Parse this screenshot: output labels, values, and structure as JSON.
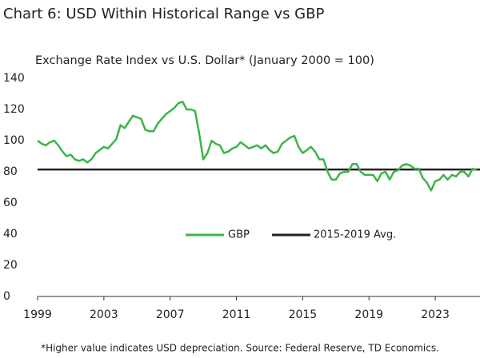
{
  "chart_data": {
    "type": "line",
    "title": "Chart 6: USD Within Historical Range vs GBP",
    "subtitle": "Exchange Rate Index vs U.S. Dollar* (January 2000 = 100)",
    "footnote": "*Higher value indicates USD depreciation. Source: Federal Reserve, TD Economics.",
    "x": [
      1999.0,
      1999.25,
      1999.5,
      1999.75,
      2000.0,
      2000.25,
      2000.5,
      2000.75,
      2001.0,
      2001.25,
      2001.5,
      2001.75,
      2002.0,
      2002.25,
      2002.5,
      2002.75,
      2003.0,
      2003.25,
      2003.5,
      2003.75,
      2004.0,
      2004.25,
      2004.5,
      2004.75,
      2005.0,
      2005.25,
      2005.5,
      2005.75,
      2006.0,
      2006.25,
      2006.5,
      2006.75,
      2007.0,
      2007.25,
      2007.5,
      2007.75,
      2008.0,
      2008.25,
      2008.5,
      2008.75,
      2009.0,
      2009.25,
      2009.5,
      2009.75,
      2010.0,
      2010.25,
      2010.5,
      2010.75,
      2011.0,
      2011.25,
      2011.5,
      2011.75,
      2012.0,
      2012.25,
      2012.5,
      2012.75,
      2013.0,
      2013.25,
      2013.5,
      2013.75,
      2014.0,
      2014.25,
      2014.5,
      2014.75,
      2015.0,
      2015.25,
      2015.5,
      2015.75,
      2016.0,
      2016.25,
      2016.5,
      2016.75,
      2017.0,
      2017.25,
      2017.5,
      2017.75,
      2018.0,
      2018.25,
      2018.5,
      2018.75,
      2019.0,
      2019.25,
      2019.5,
      2019.75,
      2020.0,
      2020.25,
      2020.5,
      2020.75,
      2021.0,
      2021.25,
      2021.5,
      2021.75,
      2022.0,
      2022.25,
      2022.5,
      2022.75,
      2023.0,
      2023.25,
      2023.5,
      2023.75,
      2024.0,
      2024.25,
      2024.5,
      2024.75,
      2025.0,
      2025.25,
      2025.5
    ],
    "series": [
      {
        "name": "GBP",
        "color": "#3bb54a",
        "values": [
          100,
          98,
          97,
          99,
          100,
          97,
          93,
          90,
          91,
          88,
          87,
          88,
          86,
          88,
          92,
          94,
          96,
          95,
          98,
          101,
          110,
          108,
          112,
          116,
          115,
          114,
          107,
          106,
          106,
          111,
          114,
          117,
          119,
          121,
          124,
          125,
          120,
          120,
          119,
          105,
          88,
          92,
          100,
          98,
          97,
          92,
          93,
          95,
          96,
          99,
          97,
          95,
          96,
          97,
          95,
          97,
          94,
          92,
          93,
          98,
          100,
          102,
          103,
          96,
          92,
          94,
          96,
          93,
          88,
          88,
          80,
          75,
          75,
          79,
          80,
          80,
          85,
          85,
          80,
          78,
          78,
          78,
          74,
          79,
          80,
          75,
          80,
          81,
          84,
          85,
          84,
          82,
          82,
          76,
          73,
          68,
          74,
          75,
          78,
          75,
          78,
          77,
          80,
          80,
          77,
          82,
          81
        ]
      }
    ],
    "hlines": [
      {
        "name": "2015-2019 Avg.",
        "color": "#222222",
        "value": 81.5
      }
    ],
    "xlim": [
      1999,
      2025.7
    ],
    "xticks": [
      1999,
      2003,
      2007,
      2011,
      2015,
      2019,
      2023
    ],
    "ylim": [
      0,
      140
    ],
    "yticks": [
      0,
      20,
      40,
      60,
      80,
      100,
      120,
      140
    ],
    "grid": false
  }
}
